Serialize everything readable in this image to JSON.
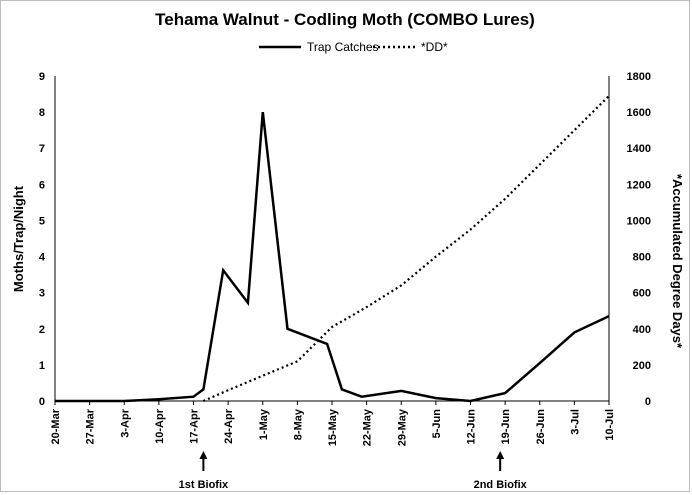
{
  "chart_data": {
    "type": "line",
    "title": "Tehama Walnut - Codling Moth (COMBO Lures)",
    "ylabel": "Moths/Trap/Night",
    "y2label": "*Accumulated Degree Days*",
    "ylim": [
      0,
      9
    ],
    "y2lim": [
      0,
      1800
    ],
    "yticks": [
      "0",
      "1",
      "2",
      "3",
      "4",
      "5",
      "6",
      "7",
      "8",
      "9"
    ],
    "y2ticks": [
      "0",
      "200",
      "400",
      "600",
      "800",
      "1000",
      "1200",
      "1400",
      "1600",
      "1800"
    ],
    "xticks": [
      "20-Mar",
      "27-Mar",
      "3-Apr",
      "10-Apr",
      "17-Apr",
      "24-Apr",
      "1-May",
      "8-May",
      "15-May",
      "22-May",
      "29-May",
      "5-Jun",
      "12-Jun",
      "19-Jun",
      "26-Jun",
      "3-Jul",
      "10-Jul"
    ],
    "xlim": [
      "20-Mar",
      "10-Jul"
    ],
    "grid": false,
    "legend": "top-center",
    "series": [
      {
        "name": "Trap Catches",
        "axis": "left",
        "style": "solid",
        "color": "#000000",
        "points": [
          [
            "20-Mar",
            0
          ],
          [
            "3-Apr",
            0
          ],
          [
            "10-Apr",
            0.05
          ],
          [
            "17-Apr",
            0.12
          ],
          [
            "19-Apr",
            0.32
          ],
          [
            "23-Apr",
            3.62
          ],
          [
            "28-Apr",
            2.72
          ],
          [
            "1-May",
            8.0
          ],
          [
            "6-May",
            2.0
          ],
          [
            "14-May",
            1.58
          ],
          [
            "17-May",
            0.32
          ],
          [
            "21-May",
            0.12
          ],
          [
            "29-May",
            0.28
          ],
          [
            "5-Jun",
            0.08
          ],
          [
            "12-Jun",
            0.0
          ],
          [
            "19-Jun",
            0.22
          ],
          [
            "26-Jun",
            1.05
          ],
          [
            "3-Jul",
            1.9
          ],
          [
            "10-Jul",
            2.35
          ]
        ]
      },
      {
        "name": "*DD*",
        "axis": "right",
        "style": "dotted",
        "color": "#000000",
        "points": [
          [
            "19-Apr",
            0
          ],
          [
            "24-Apr",
            60
          ],
          [
            "1-May",
            140
          ],
          [
            "8-May",
            220
          ],
          [
            "15-May",
            410
          ],
          [
            "22-May",
            520
          ],
          [
            "29-May",
            640
          ],
          [
            "5-Jun",
            800
          ],
          [
            "12-Jun",
            950
          ],
          [
            "19-Jun",
            1120
          ],
          [
            "26-Jun",
            1310
          ],
          [
            "3-Jul",
            1500
          ],
          [
            "10-Jul",
            1690
          ]
        ]
      }
    ],
    "annotations": [
      {
        "text": "1st Biofix",
        "date": "19-Apr"
      },
      {
        "text": "2nd Biofix",
        "date": "18-Jun"
      }
    ]
  }
}
